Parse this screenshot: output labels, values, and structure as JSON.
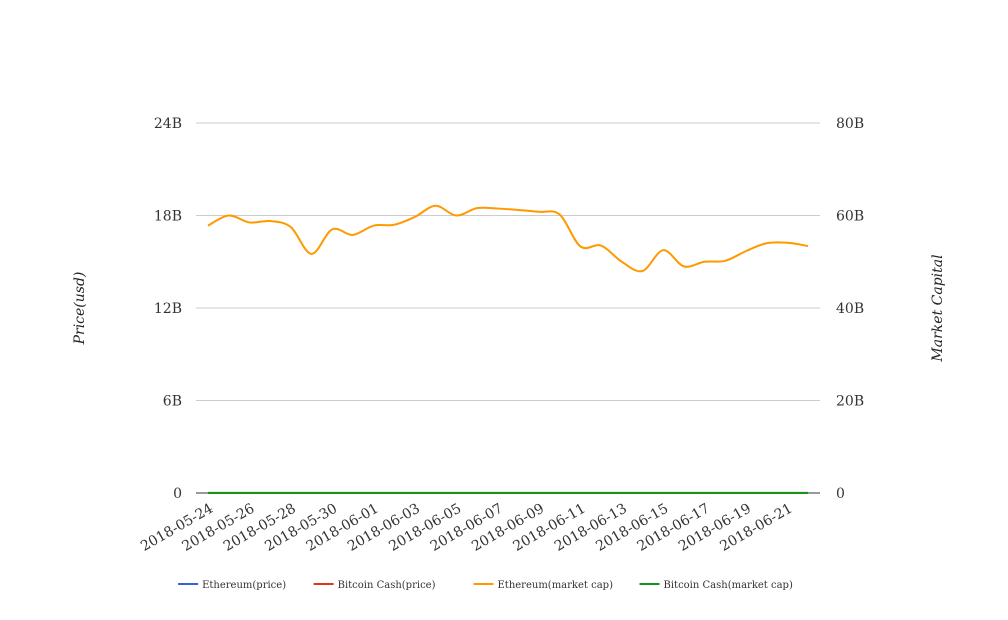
{
  "chart_data": {
    "type": "line",
    "title": "",
    "y_left_label": "Price(usd)",
    "y_right_label": "Market Capital",
    "y_left_ticks": [
      "0",
      "6B",
      "12B",
      "18B",
      "24B"
    ],
    "y_right_ticks": [
      "0",
      "20B",
      "40B",
      "60B",
      "80B"
    ],
    "y_left_range": [
      0,
      24000000000
    ],
    "y_right_range": [
      0,
      80000000000
    ],
    "x_tick_labels": [
      "2018-05-24",
      "2018-05-26",
      "2018-05-28",
      "2018-05-30",
      "2018-06-01",
      "2018-06-03",
      "2018-06-05",
      "2018-06-07",
      "2018-06-09",
      "2018-06-11",
      "2018-06-13",
      "2018-06-15",
      "2018-06-17",
      "2018-06-19",
      "2018-06-21"
    ],
    "x": [
      "2018-05-24",
      "2018-05-25",
      "2018-05-26",
      "2018-05-27",
      "2018-05-28",
      "2018-05-29",
      "2018-05-30",
      "2018-05-31",
      "2018-06-01",
      "2018-06-02",
      "2018-06-03",
      "2018-06-04",
      "2018-06-05",
      "2018-06-06",
      "2018-06-07",
      "2018-06-08",
      "2018-06-09",
      "2018-06-10",
      "2018-06-11",
      "2018-06-12",
      "2018-06-13",
      "2018-06-14",
      "2018-06-15",
      "2018-06-16",
      "2018-06-17",
      "2018-06-18",
      "2018-06-19",
      "2018-06-20",
      "2018-06-21",
      "2018-06-22"
    ],
    "grid": true,
    "legend_position": "bottom",
    "series": [
      {
        "name": "Ethereum(price)",
        "axis": "left",
        "color": "#3366cc",
        "values": [
          600,
          610,
          590,
          580,
          520,
          570,
          560,
          580,
          585,
          600,
          620,
          610,
          600,
          610,
          605,
          600,
          590,
          530,
          520,
          500,
          490,
          520,
          500,
          505,
          500,
          520,
          530,
          525,
          520,
          515
        ]
      },
      {
        "name": "Bitcoin Cash(price)",
        "axis": "left",
        "color": "#dc3912",
        "values": [
          1150,
          1190,
          1140,
          1130,
          1010,
          1110,
          1100,
          1120,
          1125,
          1200,
          1310,
          1250,
          1300,
          1270,
          1280,
          1250,
          1220,
          1060,
          1070,
          990,
          950,
          1010,
          950,
          955,
          950,
          990,
          1020,
          1010,
          995,
          980
        ]
      },
      {
        "name": "Ethereum(market cap)",
        "axis": "right",
        "color": "#ff9900",
        "values": [
          57800000000,
          60000000000,
          58500000000,
          58800000000,
          57500000000,
          51700000000,
          57000000000,
          55800000000,
          57800000000,
          58000000000,
          59700000000,
          62100000000,
          60000000000,
          61600000000,
          61500000000,
          61200000000,
          60800000000,
          60200000000,
          53300000000,
          53500000000,
          50000000000,
          48000000000,
          52500000000,
          49000000000,
          50000000000,
          50200000000,
          52300000000,
          54000000000,
          54100000000,
          53400000000
        ]
      },
      {
        "name": "Bitcoin Cash(market cap)",
        "axis": "right",
        "color": "#109618",
        "values": [
          20000000,
          20000000,
          20000000,
          20000000,
          20000000,
          20000000,
          20000000,
          20000000,
          20000000,
          20000000,
          20000000,
          20000000,
          20000000,
          20000000,
          20000000,
          20000000,
          20000000,
          20000000,
          20000000,
          20000000,
          20000000,
          20000000,
          20000000,
          20000000,
          20000000,
          20000000,
          20000000,
          20000000,
          20000000,
          20000000
        ]
      }
    ]
  }
}
